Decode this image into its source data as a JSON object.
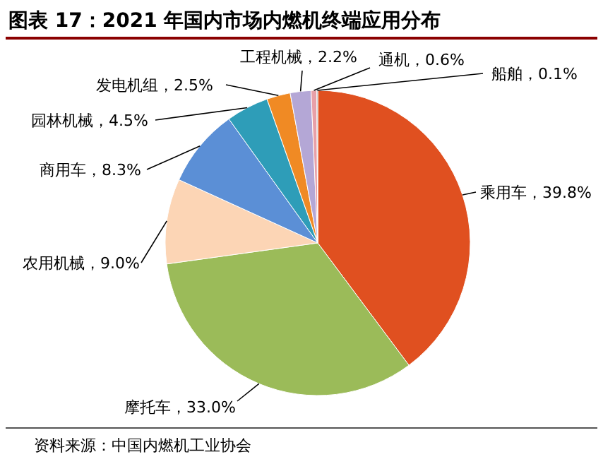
{
  "chart_data": {
    "type": "pie",
    "title": "图表 17：2021 年国内市场内燃机终端应用分布",
    "categories": [
      "乘用车",
      "摩托车",
      "农用机械",
      "商用车",
      "园林机械",
      "发电机组",
      "工程机械",
      "通机",
      "船舶"
    ],
    "values": [
      39.8,
      33.0,
      9.0,
      8.3,
      4.5,
      2.5,
      2.2,
      0.6,
      0.1
    ],
    "value_labels": [
      "39.8%",
      "33.0%",
      "9.0%",
      "8.3%",
      "4.5%",
      "2.5%",
      "2.2%",
      "0.6%",
      "0.1%"
    ],
    "colors": [
      "#e05020",
      "#9bbb59",
      "#fcd5b5",
      "#5b8fd6",
      "#2e9db8",
      "#f08a24",
      "#b4a7d6",
      "#e8a0a8",
      "#8e8e8e"
    ],
    "annotations": [
      "资料来源：中国内燃机工业协会"
    ]
  }
}
